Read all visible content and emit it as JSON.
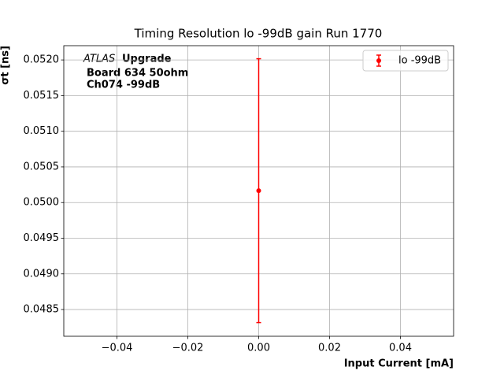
{
  "chart_data": {
    "type": "errorbar",
    "title": "Timing Resolution lo -99dB gain Run 1770",
    "xlabel": "Input Current [mA]",
    "ylabel": "σt [ns]",
    "annotations": [
      "ATLAS",
      "Upgrade",
      "Board 634 50ohm",
      "Ch074 -99dB"
    ],
    "series": [
      {
        "name": "lo -99dB",
        "color": "#ff0000",
        "x": [
          0.0
        ],
        "values": [
          0.050167
        ],
        "errors": [
          0.00185
        ]
      }
    ],
    "xlim": [
      -0.055,
      0.055
    ],
    "xticks": [
      {
        "value": -0.04,
        "label": "−0.04"
      },
      {
        "value": -0.02,
        "label": "−0.02"
      },
      {
        "value": 0,
        "label": "0.00"
      },
      {
        "value": 0.02,
        "label": "0.02"
      },
      {
        "value": 0.04,
        "label": "0.04"
      }
    ],
    "ylim": [
      0.048125,
      0.0522
    ],
    "yticks": [
      {
        "value": 0.0485,
        "label": "0.0485"
      },
      {
        "value": 0.049,
        "label": "0.0490"
      },
      {
        "value": 0.0495,
        "label": "0.0495"
      },
      {
        "value": 0.05,
        "label": "0.0500"
      },
      {
        "value": 0.0505,
        "label": "0.0505"
      },
      {
        "value": 0.051,
        "label": "0.0510"
      },
      {
        "value": 0.0515,
        "label": "0.0515"
      },
      {
        "value": 0.052,
        "label": "0.0520"
      }
    ],
    "grid": true,
    "legend": "upper right"
  }
}
